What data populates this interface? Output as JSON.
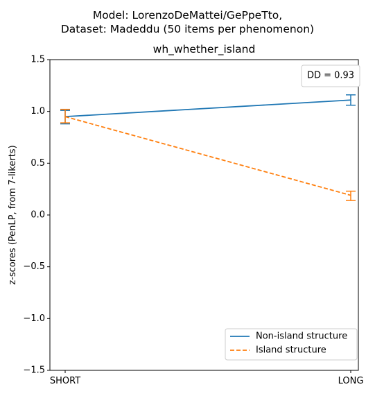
{
  "figure": {
    "title_line1": "Model: LorenzoDeMattei/GePpeTto,",
    "title_line2": "Dataset: Madeddu (50 items per phenomenon)"
  },
  "chart_data": {
    "type": "line",
    "title": "wh_whether_island",
    "xlabel": "",
    "ylabel": "z-scores (PenLP, from 7-likerts)",
    "categories": [
      "SHORT",
      "LONG"
    ],
    "ylim": [
      -1.5,
      1.5
    ],
    "yticks": [
      "1.5",
      "1.0",
      "0.5",
      "0.0",
      "−0.5",
      "−1.0",
      "−1.5"
    ],
    "ytick_values": [
      1.5,
      1.0,
      0.5,
      0.0,
      -0.5,
      -1.0,
      -1.5
    ],
    "grid": false,
    "legend_position": "lower-right",
    "annotation": "DD = 0.93",
    "series": [
      {
        "name": "Non-island structure",
        "values": [
          0.95,
          1.11
        ],
        "err_low": [
          0.88,
          1.06
        ],
        "err_high": [
          1.01,
          1.16
        ],
        "color": "#1f77b4",
        "dash": "solid"
      },
      {
        "name": "Island structure",
        "values": [
          0.95,
          0.19
        ],
        "err_low": [
          0.89,
          0.14
        ],
        "err_high": [
          1.02,
          0.23
        ],
        "color": "#ff7f0e",
        "dash": "dashed"
      }
    ]
  }
}
